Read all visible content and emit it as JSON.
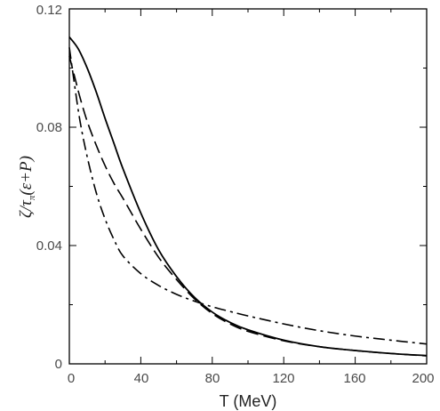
{
  "chart_data": {
    "type": "line",
    "xlabel": "T (MeV)",
    "ylabel": {
      "zeta": "ζ",
      "slash": "/",
      "tau": "τ",
      "tau_sub": "π",
      "rest": "(ε+P)"
    },
    "xlim": [
      0,
      200
    ],
    "ylim": [
      0,
      0.12
    ],
    "x_ticks": [
      "0",
      "40",
      "80",
      "120",
      "160",
      "200"
    ],
    "y_ticks": [
      "0",
      "0.04",
      "0.08",
      "0.12"
    ],
    "grid": false,
    "series": [
      {
        "style": "solid",
        "x": [
          0,
          5,
          10,
          15,
          20,
          25,
          30,
          40,
          50,
          60,
          70,
          80,
          90,
          100,
          120,
          140,
          160,
          180,
          200
        ],
        "y": [
          0.1105,
          0.1065,
          0.1,
          0.092,
          0.083,
          0.0745,
          0.066,
          0.051,
          0.0385,
          0.0295,
          0.0225,
          0.0175,
          0.014,
          0.0115,
          0.008,
          0.0058,
          0.0045,
          0.0035,
          0.0028
        ]
      },
      {
        "style": "dashed",
        "x": [
          0,
          3,
          6,
          10,
          15,
          20,
          25,
          30,
          40,
          50,
          60,
          70,
          80,
          90,
          100,
          120,
          140,
          160,
          180,
          200
        ],
        "y": [
          0.104,
          0.097,
          0.09,
          0.082,
          0.074,
          0.067,
          0.061,
          0.056,
          0.0455,
          0.036,
          0.0285,
          0.022,
          0.017,
          0.0135,
          0.011,
          0.0078,
          0.0058,
          0.0045,
          0.0035,
          0.0027
        ]
      },
      {
        "style": "dash-dot",
        "x": [
          0,
          3,
          6,
          10,
          15,
          20,
          25,
          30,
          40,
          50,
          60,
          70,
          80,
          90,
          100,
          120,
          140,
          160,
          180,
          200
        ],
        "y": [
          0.107,
          0.094,
          0.082,
          0.07,
          0.058,
          0.049,
          0.042,
          0.0365,
          0.0305,
          0.0265,
          0.0235,
          0.0212,
          0.0193,
          0.0177,
          0.0162,
          0.0135,
          0.0112,
          0.0094,
          0.008,
          0.0067
        ]
      }
    ]
  }
}
